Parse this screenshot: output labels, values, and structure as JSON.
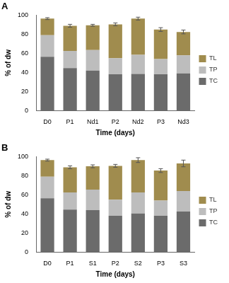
{
  "chart_data": [
    {
      "type": "bar",
      "title": "A",
      "stacked": true,
      "grid": false,
      "legend": "right",
      "x_label": "Time (days)",
      "y_label": "% of dw",
      "categories": [
        "D0",
        "P1",
        "Nd1",
        "P2",
        "Nd2",
        "P3",
        "Nd3"
      ],
      "ylim": [
        0,
        100
      ],
      "yticks": [
        0,
        20,
        40,
        60,
        80,
        100
      ],
      "series": [
        {
          "name": "TC",
          "color": "#6b6b6b",
          "values": [
            56.5,
            44.5,
            42,
            38,
            38.5,
            38,
            39
          ]
        },
        {
          "name": "TP",
          "color": "#bdbdbd",
          "values": [
            22.5,
            18,
            21.5,
            17,
            20,
            16,
            19
          ]
        },
        {
          "name": "TL",
          "color": "#a08c4e",
          "values": [
            17.5,
            26.5,
            26,
            35.5,
            38,
            31,
            24.5
          ],
          "errors": [
            1,
            1.5,
            1,
            1.5,
            1.5,
            2,
            2
          ]
        }
      ]
    },
    {
      "type": "bar",
      "title": "B",
      "stacked": true,
      "grid": false,
      "legend": "right",
      "x_label": "Time (days)",
      "y_label": "% of dw",
      "categories": [
        "D0",
        "P1",
        "S1",
        "P2",
        "S2",
        "P3",
        "S3"
      ],
      "ylim": [
        0,
        100
      ],
      "yticks": [
        0,
        20,
        40,
        60,
        80,
        100
      ],
      "series": [
        {
          "name": "TC",
          "color": "#6b6b6b",
          "values": [
            56.5,
            44.5,
            44,
            38,
            40.5,
            38,
            42.5
          ]
        },
        {
          "name": "TP",
          "color": "#bdbdbd",
          "values": [
            22.5,
            18,
            21.5,
            17,
            22,
            16,
            21.5
          ]
        },
        {
          "name": "TL",
          "color": "#a08c4e",
          "values": [
            17.5,
            26.5,
            24.5,
            35.5,
            34,
            31.5,
            29
          ],
          "errors": [
            1,
            1.5,
            1.5,
            1.5,
            2.5,
            2,
            3.5
          ]
        }
      ]
    }
  ]
}
